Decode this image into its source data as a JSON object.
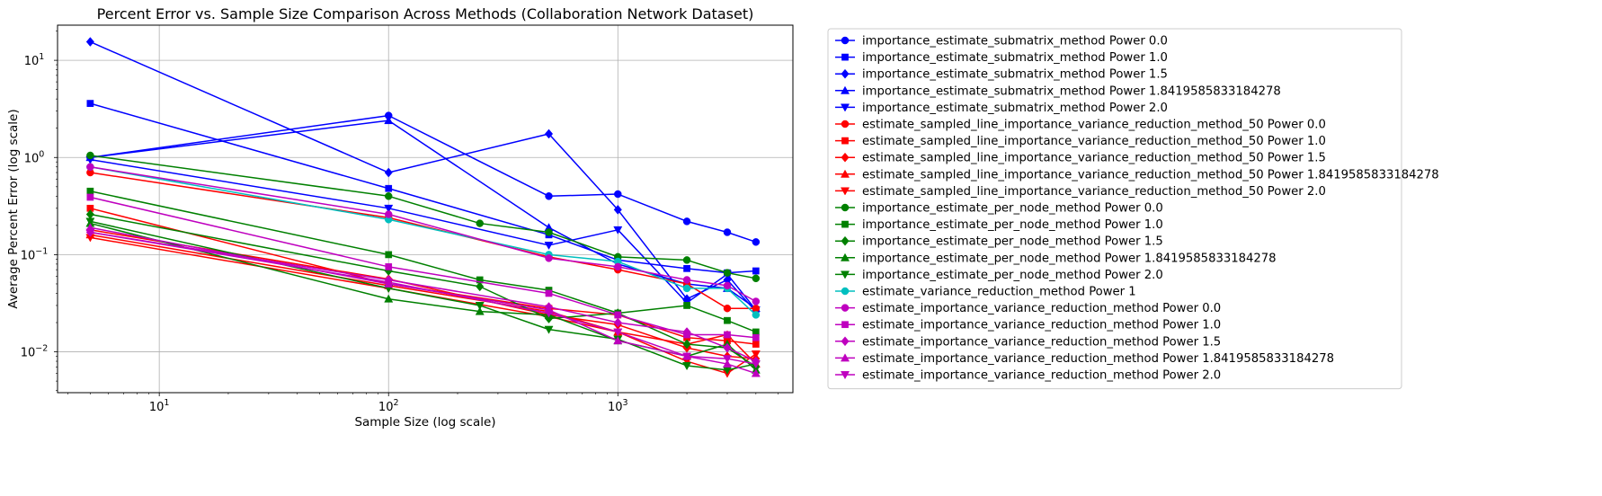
{
  "chart_data": {
    "type": "line",
    "title": "Percent Error vs. Sample Size Comparison Across Methods (Collaboration Network Dataset)",
    "xlabel": "Sample Size (log scale)",
    "ylabel": "Average Percent Error (log scale)",
    "xscale": "log",
    "yscale": "log",
    "xlim": [
      3.6,
      5800
    ],
    "ylim": [
      0.0038,
      23
    ],
    "x_ticks": [
      {
        "value": 10,
        "base": "10",
        "exp": "1"
      },
      {
        "value": 100,
        "base": "10",
        "exp": "2"
      },
      {
        "value": 1000,
        "base": "10",
        "exp": "3"
      }
    ],
    "y_ticks": [
      {
        "value": 0.01,
        "base": "10",
        "exp": "−2"
      },
      {
        "value": 0.1,
        "base": "10",
        "exp": "−1"
      },
      {
        "value": 1,
        "base": "10",
        "exp": "0"
      },
      {
        "value": 10,
        "base": "10",
        "exp": "1"
      }
    ],
    "grid": true,
    "legend_position": "outside-right",
    "series": [
      {
        "name": "importance_estimate_submatrix_method Power 0.0",
        "color": "#0000ff",
        "marker": "circle",
        "x": [
          5,
          100,
          500,
          1000,
          2000,
          3000,
          4000
        ],
        "y": [
          1.0,
          2.7,
          0.4,
          0.42,
          0.22,
          0.17,
          0.135
        ]
      },
      {
        "name": "importance_estimate_submatrix_method Power 1.0",
        "color": "#0000ff",
        "marker": "square",
        "x": [
          5,
          100,
          500,
          1000,
          2000,
          3000,
          4000
        ],
        "y": [
          3.6,
          0.48,
          0.16,
          0.088,
          0.072,
          0.065,
          0.068
        ]
      },
      {
        "name": "importance_estimate_submatrix_method Power 1.5",
        "color": "#0000ff",
        "marker": "diamond",
        "x": [
          5,
          100,
          500,
          1000,
          2000,
          3000,
          4000
        ],
        "y": [
          15.5,
          0.7,
          1.75,
          0.29,
          0.035,
          0.055,
          0.026
        ]
      },
      {
        "name": "importance_estimate_submatrix_method Power 1.8419585833184278",
        "color": "#0000ff",
        "marker": "triangle-up",
        "x": [
          5,
          100,
          500,
          1000,
          2000,
          3000,
          4000
        ],
        "y": [
          1.0,
          2.4,
          0.19,
          0.08,
          0.05,
          0.045,
          0.028
        ]
      },
      {
        "name": "importance_estimate_submatrix_method Power 2.0",
        "color": "#0000ff",
        "marker": "triangle-down",
        "x": [
          5,
          100,
          500,
          1000,
          2000,
          3000,
          4000
        ],
        "y": [
          0.95,
          0.3,
          0.125,
          0.18,
          0.032,
          0.063,
          0.027
        ]
      },
      {
        "name": "estimate_sampled_line_importance_variance_reduction_method_50 Power 0.0",
        "color": "#ff0000",
        "marker": "circle",
        "x": [
          5,
          100,
          500,
          1000,
          2000,
          3000,
          4000
        ],
        "y": [
          0.7,
          0.24,
          0.095,
          0.07,
          0.05,
          0.028,
          0.028
        ]
      },
      {
        "name": "estimate_sampled_line_importance_variance_reduction_method_50 Power 1.0",
        "color": "#ff0000",
        "marker": "square",
        "x": [
          5,
          100,
          500,
          1000,
          2000,
          3000,
          4000
        ],
        "y": [
          0.3,
          0.05,
          0.028,
          0.024,
          0.014,
          0.013,
          0.012
        ]
      },
      {
        "name": "estimate_sampled_line_importance_variance_reduction_method_50 Power 1.5",
        "color": "#ff0000",
        "marker": "diamond",
        "x": [
          5,
          100,
          500,
          1000,
          2000,
          3000,
          4000
        ],
        "y": [
          0.18,
          0.056,
          0.024,
          0.019,
          0.011,
          0.009,
          0.0085
        ]
      },
      {
        "name": "estimate_sampled_line_importance_variance_reduction_method_50 Power 1.8419585833184278",
        "color": "#ff0000",
        "marker": "triangle-up",
        "x": [
          5,
          100,
          500,
          1000,
          2000,
          3000,
          4000
        ],
        "y": [
          0.16,
          0.048,
          0.026,
          0.016,
          0.012,
          0.015,
          0.0075
        ]
      },
      {
        "name": "estimate_sampled_line_importance_variance_reduction_method_50 Power 2.0",
        "color": "#ff0000",
        "marker": "triangle-down",
        "x": [
          5,
          100,
          500,
          1000,
          2000,
          3000,
          4000
        ],
        "y": [
          0.15,
          0.045,
          0.023,
          0.016,
          0.008,
          0.006,
          0.0095
        ]
      },
      {
        "name": "importance_estimate_per_node_method Power 0.0",
        "color": "#008000",
        "marker": "circle",
        "x": [
          5,
          100,
          250,
          500,
          1000,
          2000,
          3000,
          4000
        ],
        "y": [
          1.05,
          0.4,
          0.21,
          0.17,
          0.095,
          0.088,
          0.065,
          0.057
        ]
      },
      {
        "name": "importance_estimate_per_node_method Power 1.0",
        "color": "#008000",
        "marker": "square",
        "x": [
          5,
          100,
          250,
          500,
          1000,
          2000,
          3000,
          4000
        ],
        "y": [
          0.45,
          0.1,
          0.055,
          0.043,
          0.025,
          0.03,
          0.021,
          0.016
        ]
      },
      {
        "name": "importance_estimate_per_node_method Power 1.5",
        "color": "#008000",
        "marker": "diamond",
        "x": [
          5,
          100,
          250,
          500,
          1000,
          2000,
          3000,
          4000
        ],
        "y": [
          0.26,
          0.068,
          0.047,
          0.022,
          0.025,
          0.012,
          0.011,
          0.007
        ]
      },
      {
        "name": "importance_estimate_per_node_method Power 1.8419585833184278",
        "color": "#008000",
        "marker": "triangle-up",
        "x": [
          5,
          100,
          250,
          500,
          1000,
          2000,
          3000,
          4000
        ],
        "y": [
          0.21,
          0.035,
          0.026,
          0.024,
          0.013,
          0.009,
          0.012,
          0.0065
        ]
      },
      {
        "name": "importance_estimate_per_node_method Power 2.0",
        "color": "#008000",
        "marker": "triangle-down",
        "x": [
          5,
          100,
          250,
          500,
          1000,
          2000,
          3000,
          4000
        ],
        "y": [
          0.22,
          0.045,
          0.03,
          0.017,
          0.0135,
          0.0072,
          0.0065,
          0.0075
        ]
      },
      {
        "name": "estimate_variance_reduction_method Power 1",
        "color": "#00bfbf",
        "marker": "circle",
        "x": [
          5,
          100,
          500,
          1000,
          2000,
          3000,
          4000
        ],
        "y": [
          0.8,
          0.23,
          0.1,
          0.085,
          0.045,
          0.045,
          0.024
        ]
      },
      {
        "name": "estimate_importance_variance_reduction_method Power 0.0",
        "color": "#bf00bf",
        "marker": "circle",
        "x": [
          5,
          100,
          500,
          1000,
          2000,
          3000,
          4000
        ],
        "y": [
          0.8,
          0.26,
          0.092,
          0.075,
          0.055,
          0.048,
          0.033
        ]
      },
      {
        "name": "estimate_importance_variance_reduction_method Power 1.0",
        "color": "#bf00bf",
        "marker": "square",
        "x": [
          5,
          100,
          500,
          1000,
          2000,
          3000,
          4000
        ],
        "y": [
          0.39,
          0.075,
          0.04,
          0.024,
          0.015,
          0.015,
          0.014
        ]
      },
      {
        "name": "estimate_importance_variance_reduction_method Power 1.5",
        "color": "#bf00bf",
        "marker": "diamond",
        "x": [
          5,
          100,
          500,
          1000,
          2000,
          3000,
          4000
        ],
        "y": [
          0.17,
          0.055,
          0.029,
          0.02,
          0.016,
          0.011,
          0.008
        ]
      },
      {
        "name": "estimate_importance_variance_reduction_method Power 1.8419585833184278",
        "color": "#bf00bf",
        "marker": "triangle-up",
        "x": [
          5,
          100,
          500,
          1000,
          2000,
          3000,
          4000
        ],
        "y": [
          0.19,
          0.05,
          0.027,
          0.013,
          0.009,
          0.0075,
          0.006
        ]
      },
      {
        "name": "estimate_importance_variance_reduction_method Power 2.0",
        "color": "#bf00bf",
        "marker": "triangle-down",
        "x": [
          5,
          100,
          500,
          1000,
          2000,
          3000,
          4000
        ],
        "y": [
          0.17,
          0.052,
          0.025,
          0.016,
          0.009,
          0.0085,
          0.0075
        ]
      }
    ]
  }
}
